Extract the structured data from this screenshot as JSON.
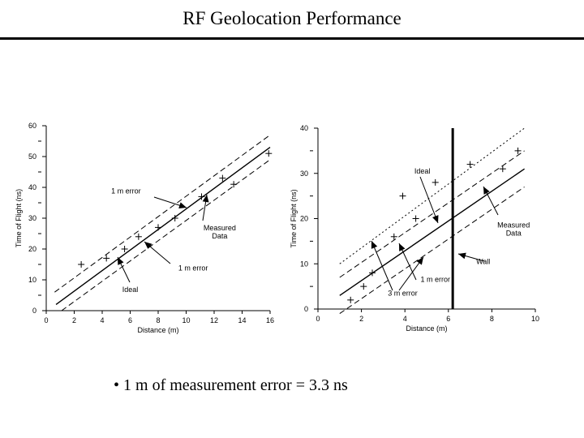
{
  "page": {
    "title": "RF Geolocation Performance",
    "bullet": "1 m of measurement error = 3.3 ns"
  },
  "chart_data": [
    {
      "type": "scatter",
      "xlabel": "Distance (m)",
      "ylabel": "Time of Flight (ns)",
      "xlim": [
        0,
        16
      ],
      "ylim": [
        0,
        60
      ],
      "x_ticks": [
        0,
        2,
        4,
        6,
        8,
        10,
        12,
        14,
        16
      ],
      "y_ticks": [
        0,
        10,
        20,
        30,
        40,
        50,
        60
      ],
      "lines": [
        {
          "name": "ideal",
          "style": "solid",
          "points": [
            [
              0.7,
              2
            ],
            [
              16,
              53
            ]
          ]
        },
        {
          "name": "upper",
          "style": "dashed",
          "points": [
            [
              0.6,
              6
            ],
            [
              16,
              57
            ]
          ]
        },
        {
          "name": "lower",
          "style": "dashed",
          "points": [
            [
              1.1,
              0
            ],
            [
              16,
              49
            ]
          ]
        }
      ],
      "measured": [
        [
          2.5,
          15
        ],
        [
          4.3,
          17
        ],
        [
          5.6,
          20
        ],
        [
          6.6,
          24
        ],
        [
          8,
          27
        ],
        [
          9.2,
          30
        ],
        [
          11.1,
          37
        ],
        [
          12.6,
          43
        ],
        [
          13.4,
          41
        ],
        [
          15.9,
          51
        ]
      ],
      "annotations": [
        {
          "text": "1 m error",
          "x": 5.7,
          "y": 38
        },
        {
          "text": "Measured Data",
          "x": 12.4,
          "y": 26
        },
        {
          "text": "1 m error",
          "x": 10.5,
          "y": 13
        },
        {
          "text": "Ideal",
          "x": 6.0,
          "y": 6
        }
      ]
    },
    {
      "type": "scatter",
      "xlabel": "Distance (m)",
      "ylabel": "Time of Flight (ns)",
      "xlim": [
        0,
        10
      ],
      "ylim": [
        0,
        40
      ],
      "x_ticks": [
        0,
        2,
        4,
        6,
        8,
        10
      ],
      "y_ticks": [
        0,
        10,
        20,
        30,
        40
      ],
      "lines": [
        {
          "name": "ideal",
          "style": "solid",
          "points": [
            [
              1,
              3
            ],
            [
              9.5,
              31
            ]
          ]
        },
        {
          "name": "upper",
          "style": "dashed",
          "points": [
            [
              1,
              7
            ],
            [
              9.5,
              35
            ]
          ]
        },
        {
          "name": "lower",
          "style": "dashed",
          "points": [
            [
              1,
              -1
            ],
            [
              9.5,
              27
            ]
          ]
        },
        {
          "name": "3m-upper",
          "style": "dotted",
          "points": [
            [
              1,
              10
            ],
            [
              9.5,
              40
            ]
          ]
        }
      ],
      "wall": {
        "x": 6.2,
        "label": "Wall"
      },
      "measured": [
        [
          1.5,
          2
        ],
        [
          2.1,
          5
        ],
        [
          2.5,
          8
        ],
        [
          3.5,
          16
        ],
        [
          3.9,
          25
        ],
        [
          4.5,
          20
        ],
        [
          5.4,
          28
        ],
        [
          7,
          32
        ],
        [
          8.5,
          31
        ],
        [
          9.2,
          35
        ]
      ],
      "annotations": [
        {
          "text": "Ideal",
          "x": 4.8,
          "y": 30
        },
        {
          "text": "Measured Data",
          "x": 9,
          "y": 18
        },
        {
          "text": "Wall",
          "x": 7.6,
          "y": 10
        },
        {
          "text": "1 m error",
          "x": 5.4,
          "y": 6
        },
        {
          "text": "3 m error",
          "x": 3.9,
          "y": 3
        }
      ]
    }
  ]
}
